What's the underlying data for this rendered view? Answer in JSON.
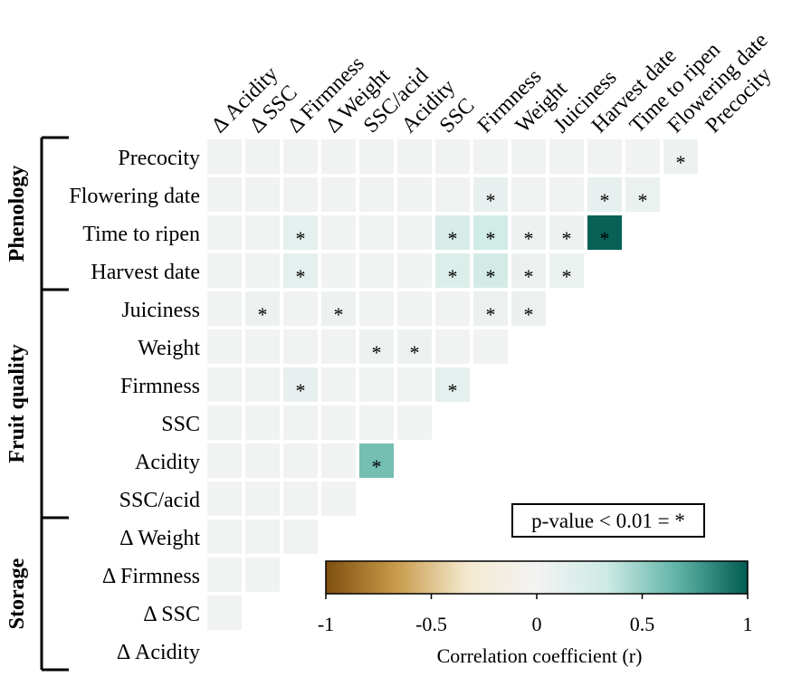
{
  "chart_data": {
    "type": "heatmap",
    "title": "",
    "row_labels": [
      "Precocity",
      "Flowering date",
      "Time to ripen",
      "Harvest date",
      "Juiciness",
      "Weight",
      "Firmness",
      "SSC",
      "Acidity",
      "SSC/acid",
      "Δ Weight",
      "Δ Firmness",
      "Δ SSC",
      "Δ Acidity"
    ],
    "col_labels": [
      "Δ Acidity",
      "Δ SSC",
      "Δ Firmness",
      "Δ Weight",
      "SSC/acid",
      "Acidity",
      "SSC",
      "Firmness",
      "Weight",
      "Juiciness",
      "Harvest date",
      "Time to ripen",
      "Flowering date",
      "Precocity"
    ],
    "groups": [
      {
        "label": "Phenology",
        "rows": [
          "Precocity",
          "Flowering date",
          "Time to ripen",
          "Harvest date"
        ]
      },
      {
        "label": "Fruit quality",
        "rows": [
          "Juiciness",
          "Weight",
          "Firmness",
          "SSC",
          "Acidity",
          "SSC/acid"
        ]
      },
      {
        "label": "Storage",
        "rows": [
          "Δ Weight",
          "Δ Firmness",
          "Δ SSC",
          "Δ Acidity"
        ]
      }
    ],
    "values": [
      [
        0.02,
        0.02,
        0.02,
        0.02,
        0.02,
        0.02,
        0.02,
        0.02,
        0.02,
        0.02,
        0.02,
        0.02,
        0.05
      ],
      [
        0.02,
        0.02,
        0.02,
        0.02,
        0.02,
        0.02,
        0.03,
        0.1,
        0.02,
        0.02,
        0.1,
        0.08
      ],
      [
        0.02,
        0.02,
        0.12,
        0.02,
        0.02,
        0.02,
        0.25,
        0.3,
        0.05,
        0.05,
        0.98
      ],
      [
        0.02,
        0.02,
        0.12,
        0.02,
        0.02,
        0.02,
        0.2,
        0.28,
        0.06,
        0.08
      ],
      [
        0.02,
        0.05,
        0.02,
        0.05,
        0.02,
        0.02,
        0.02,
        0.06,
        0.06
      ],
      [
        0.02,
        0.02,
        0.02,
        0.02,
        0.05,
        0.05,
        0.02,
        0.02
      ],
      [
        0.02,
        0.02,
        0.1,
        0.02,
        0.02,
        0.02,
        0.12
      ],
      [
        0.02,
        0.02,
        0.02,
        0.02,
        0.02,
        0.02
      ],
      [
        0.02,
        0.02,
        0.02,
        0.02,
        0.6
      ],
      [
        0.02,
        0.02,
        0.02,
        0.02
      ],
      [
        0.02,
        0.02,
        0.02
      ],
      [
        0.02,
        0.02
      ],
      [
        0.03
      ],
      []
    ],
    "significant": [
      [
        12
      ],
      [
        7,
        10,
        11
      ],
      [
        2,
        6,
        7,
        8,
        9,
        10
      ],
      [
        2,
        6,
        7,
        8,
        9
      ],
      [
        1,
        3,
        7,
        8
      ],
      [
        4,
        5
      ],
      [
        2,
        6
      ],
      [],
      [
        4
      ],
      [],
      [],
      [],
      [],
      []
    ],
    "significance_note": "p-value < 0.01 = *",
    "colorbar": {
      "label": "Correlation coefficient (r)",
      "range": [
        -1,
        1
      ],
      "ticks": [
        -1,
        -0.5,
        0,
        0.5,
        1
      ],
      "tick_labels": [
        "-1",
        "-0.5",
        "0",
        "0.5",
        "1"
      ],
      "colors": [
        "#7f4f0e",
        "#c89a4a",
        "#f3e9cf",
        "#f3f3f3",
        "#cdeae4",
        "#5fb3a6",
        "#015c52"
      ]
    }
  }
}
